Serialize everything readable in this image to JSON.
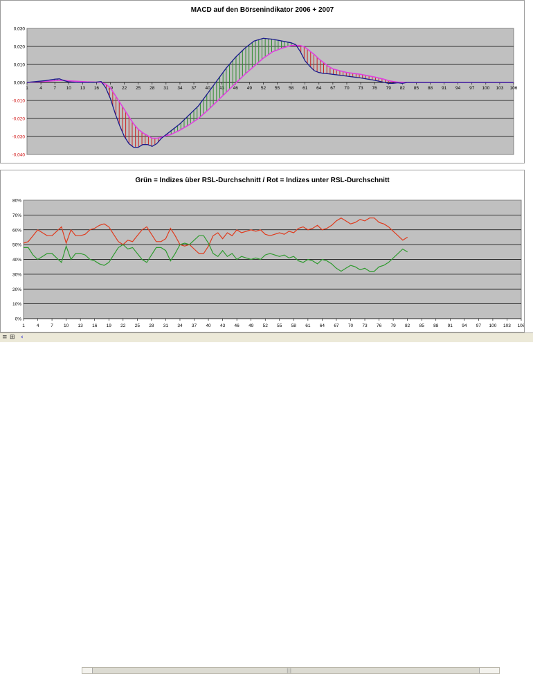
{
  "chart_data": [
    {
      "type": "line",
      "title": "MACD auf den Börsenindikator 2006 + 2007",
      "xlabel": "",
      "ylabel": "",
      "ylim": [
        -0.04,
        0.03
      ],
      "y_ticks": [
        "0,030",
        "0,020",
        "0,010",
        "0,000",
        "-0,010",
        "-0,020",
        "-0,030",
        "-0,040"
      ],
      "x_ticks": [
        "1",
        "4",
        "7",
        "10",
        "13",
        "16",
        "19",
        "22",
        "25",
        "28",
        "31",
        "34",
        "37",
        "40",
        "43",
        "46",
        "49",
        "52",
        "55",
        "58",
        "61",
        "64",
        "67",
        "70",
        "73",
        "76",
        "79",
        "82",
        "85",
        "88",
        "91",
        "94",
        "97",
        "100",
        "103",
        "106"
      ],
      "x_range": [
        1,
        106
      ],
      "grid": true,
      "legend": "none",
      "fill_positive_color": "#2e8b2e",
      "fill_negative_color": "#cc2222",
      "series": [
        {
          "color": "#1a1a8c",
          "x": [
            1,
            3,
            5,
            7,
            8,
            9,
            10,
            12,
            14,
            16,
            17,
            18,
            19,
            20,
            21,
            22,
            23,
            24,
            25,
            26,
            27,
            28,
            29,
            30,
            31,
            32,
            34,
            36,
            38,
            40,
            42,
            44,
            46,
            48,
            50,
            52,
            54,
            56,
            58,
            59,
            60,
            61,
            62,
            63,
            64,
            65,
            66,
            67,
            70,
            73,
            76,
            78,
            79,
            80,
            81,
            82,
            83,
            85,
            90,
            95,
            100,
            106
          ],
          "values": [
            0,
            0.0005,
            0.001,
            0.0018,
            0.002,
            0.001,
            0.0003,
            0,
            0,
            0.0002,
            0.0005,
            -0.003,
            -0.009,
            -0.017,
            -0.024,
            -0.03,
            -0.034,
            -0.036,
            -0.036,
            -0.0345,
            -0.0345,
            -0.0355,
            -0.034,
            -0.031,
            -0.029,
            -0.027,
            -0.023,
            -0.018,
            -0.013,
            -0.006,
            0.001,
            0.008,
            0.014,
            0.019,
            0.023,
            0.0245,
            0.024,
            0.023,
            0.022,
            0.021,
            0.017,
            0.012,
            0.009,
            0.0065,
            0.0055,
            0.005,
            0.0048,
            0.0045,
            0.0035,
            0.0025,
            0.0012,
            0.0001,
            -0.0005,
            -0.0005,
            -0.0002,
            -0.0005,
            0,
            0,
            0,
            0,
            0,
            0
          ]
        },
        {
          "color": "#e040e0",
          "x": [
            1,
            3,
            5,
            7,
            8,
            9,
            10,
            12,
            14,
            16,
            17,
            18,
            19,
            20,
            21,
            22,
            23,
            24,
            25,
            26,
            27,
            28,
            29,
            30,
            31,
            32,
            34,
            36,
            38,
            40,
            42,
            44,
            46,
            48,
            50,
            52,
            54,
            56,
            58,
            59,
            60,
            61,
            62,
            63,
            64,
            65,
            66,
            67,
            70,
            73,
            76,
            78,
            79,
            80,
            81,
            82,
            83,
            85,
            90,
            95,
            100,
            106
          ],
          "values": [
            0,
            0.0003,
            0.0006,
            0.001,
            0.0012,
            0.0011,
            0.0009,
            0.0006,
            0.0003,
            0.0002,
            0,
            -0.001,
            -0.003,
            -0.007,
            -0.011,
            -0.015,
            -0.019,
            -0.023,
            -0.026,
            -0.028,
            -0.0295,
            -0.031,
            -0.031,
            -0.0305,
            -0.0295,
            -0.029,
            -0.0265,
            -0.0235,
            -0.02,
            -0.0155,
            -0.0105,
            -0.0055,
            -0.0005,
            0.0045,
            0.009,
            0.0135,
            0.017,
            0.019,
            0.0205,
            0.0205,
            0.0205,
            0.0195,
            0.0175,
            0.0155,
            0.013,
            0.011,
            0.009,
            0.0075,
            0.0055,
            0.0045,
            0.003,
            0.0018,
            0.001,
            0.0005,
            0.0002,
            0.0001,
            0,
            0,
            0,
            0,
            0,
            0
          ]
        }
      ]
    },
    {
      "type": "line",
      "title": "Grün = Indizes über RSL-Durchschnitt / Rot = Indizes unter RSL-Durchschnitt",
      "xlabel": "",
      "ylabel": "",
      "ylim": [
        0,
        80
      ],
      "y_ticks": [
        "80%",
        "70%",
        "60%",
        "50%",
        "40%",
        "30%",
        "20%",
        "10%",
        "0%"
      ],
      "x_ticks": [
        "1",
        "4",
        "7",
        "10",
        "13",
        "16",
        "19",
        "22",
        "25",
        "28",
        "31",
        "34",
        "37",
        "40",
        "43",
        "46",
        "49",
        "52",
        "55",
        "58",
        "61",
        "64",
        "67",
        "70",
        "73",
        "76",
        "79",
        "82",
        "85",
        "88",
        "91",
        "94",
        "97",
        "100",
        "103",
        "106"
      ],
      "x_range": [
        1,
        106
      ],
      "grid": true,
      "legend": "none",
      "series": [
        {
          "color": "#e03a1c",
          "x": [
            1,
            2,
            3,
            4,
            5,
            6,
            7,
            8,
            9,
            10,
            11,
            12,
            13,
            14,
            15,
            16,
            17,
            18,
            19,
            20,
            21,
            22,
            23,
            24,
            25,
            26,
            27,
            28,
            29,
            30,
            31,
            32,
            33,
            34,
            35,
            36,
            37,
            38,
            39,
            40,
            41,
            42,
            43,
            44,
            45,
            46,
            47,
            48,
            49,
            50,
            51,
            52,
            53,
            54,
            55,
            56,
            57,
            58,
            59,
            60,
            61,
            62,
            63,
            64,
            65,
            66,
            67,
            68,
            69,
            70,
            71,
            72,
            73,
            74,
            75,
            76,
            77,
            78,
            79,
            80,
            81,
            82
          ],
          "values": [
            51,
            52,
            56,
            60,
            58,
            56,
            56,
            59,
            62,
            51,
            60,
            56,
            56,
            57,
            60,
            61,
            63,
            64,
            62,
            57,
            52,
            50,
            53,
            52,
            56,
            60,
            62,
            57,
            52,
            52,
            54,
            61,
            56,
            50,
            49,
            50,
            47,
            44,
            44,
            49,
            56,
            58,
            54,
            58,
            56,
            60,
            58,
            59,
            60,
            59,
            60,
            57,
            56,
            57,
            58,
            57,
            59,
            58,
            61,
            62,
            60,
            61,
            63,
            60,
            61,
            63,
            66,
            68,
            66,
            64,
            65,
            67,
            66,
            68,
            68,
            65,
            64,
            62,
            59,
            56,
            53,
            55
          ]
        },
        {
          "color": "#2e9a2e",
          "x": [
            1,
            2,
            3,
            4,
            5,
            6,
            7,
            8,
            9,
            10,
            11,
            12,
            13,
            14,
            15,
            16,
            17,
            18,
            19,
            20,
            21,
            22,
            23,
            24,
            25,
            26,
            27,
            28,
            29,
            30,
            31,
            32,
            33,
            34,
            35,
            36,
            37,
            38,
            39,
            40,
            41,
            42,
            43,
            44,
            45,
            46,
            47,
            48,
            49,
            50,
            51,
            52,
            53,
            54,
            55,
            56,
            57,
            58,
            59,
            60,
            61,
            62,
            63,
            64,
            65,
            66,
            67,
            68,
            69,
            70,
            71,
            72,
            73,
            74,
            75,
            76,
            77,
            78,
            79,
            80,
            81,
            82
          ],
          "values": [
            48,
            48,
            43,
            40,
            42,
            44,
            44,
            41,
            38,
            49,
            40,
            44,
            44,
            43,
            40,
            39,
            37,
            36,
            38,
            43,
            48,
            50,
            47,
            48,
            44,
            40,
            38,
            43,
            48,
            48,
            46,
            39,
            44,
            50,
            51,
            50,
            53,
            56,
            56,
            51,
            44,
            42,
            46,
            42,
            44,
            40,
            42,
            41,
            40,
            41,
            40,
            43,
            44,
            43,
            42,
            43,
            41,
            42,
            39,
            38,
            40,
            39,
            37,
            40,
            39,
            37,
            34,
            32,
            34,
            36,
            35,
            33,
            34,
            32,
            32,
            35,
            36,
            38,
            41,
            44,
            47,
            45
          ]
        }
      ]
    }
  ],
  "statusbar": {
    "icons": [
      "sheet-nav-icon",
      "book-icon",
      "scroll-left-icon"
    ],
    "left_glyphs": [
      "≡",
      "⊞",
      "‹"
    ]
  }
}
